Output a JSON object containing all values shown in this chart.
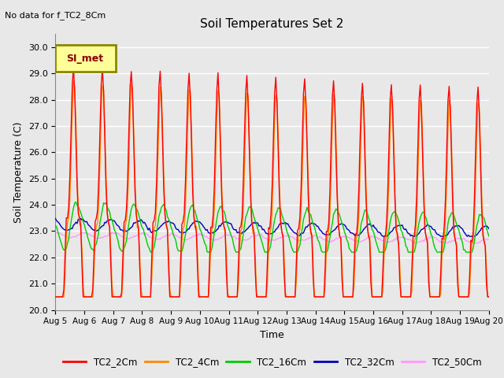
{
  "title": "Soil Temperatures Set 2",
  "top_left_text": "No data for f_TC2_8Cm",
  "xlabel": "Time",
  "ylabel": "Soil Temperature (C)",
  "ylim": [
    20.0,
    30.5
  ],
  "yticks": [
    20.0,
    21.0,
    22.0,
    23.0,
    24.0,
    25.0,
    26.0,
    27.0,
    28.0,
    29.0,
    30.0
  ],
  "xticklabels": [
    "Aug 5",
    "Aug 6",
    "Aug 7",
    "Aug 8",
    "Aug 9",
    "Aug 10",
    "Aug 11",
    "Aug 12",
    "Aug 13",
    "Aug 14",
    "Aug 15",
    "Aug 16",
    "Aug 17",
    "Aug 18",
    "Aug 19",
    "Aug 20"
  ],
  "legend_label": "SI_met",
  "legend_box_color": "#FFFF99",
  "legend_box_edge": "#888800",
  "series_labels": [
    "TC2_2Cm",
    "TC2_4Cm",
    "TC2_16Cm",
    "TC2_32Cm",
    "TC2_50Cm"
  ],
  "series_colors": [
    "#FF0000",
    "#FF8800",
    "#00CC00",
    "#0000BB",
    "#FF99FF"
  ],
  "background_color": "#E8E8E8",
  "grid_color": "#FFFFFF",
  "seed": 42
}
